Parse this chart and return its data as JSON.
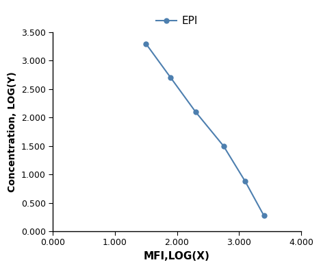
{
  "x": [
    1.5,
    1.9,
    2.3,
    2.75,
    3.1,
    3.4
  ],
  "y": [
    3.3,
    2.7,
    2.1,
    1.5,
    0.875,
    0.275
  ],
  "line_color": "#4d7faf",
  "marker_style": "o",
  "marker_size": 5,
  "line_width": 1.5,
  "xlabel": "MFI,LOG(X)",
  "ylabel": "Concentration, LOG(Y)",
  "legend_label": "EPI",
  "xlim": [
    0.0,
    4.0
  ],
  "ylim": [
    0.0,
    3.5
  ],
  "xticks": [
    0.0,
    1.0,
    2.0,
    3.0,
    4.0
  ],
  "yticks": [
    0.0,
    0.5,
    1.0,
    1.5,
    2.0,
    2.5,
    3.0,
    3.5
  ],
  "xlabel_fontsize": 11,
  "ylabel_fontsize": 10,
  "legend_fontsize": 11,
  "tick_fontsize": 9,
  "background_color": "#ffffff"
}
